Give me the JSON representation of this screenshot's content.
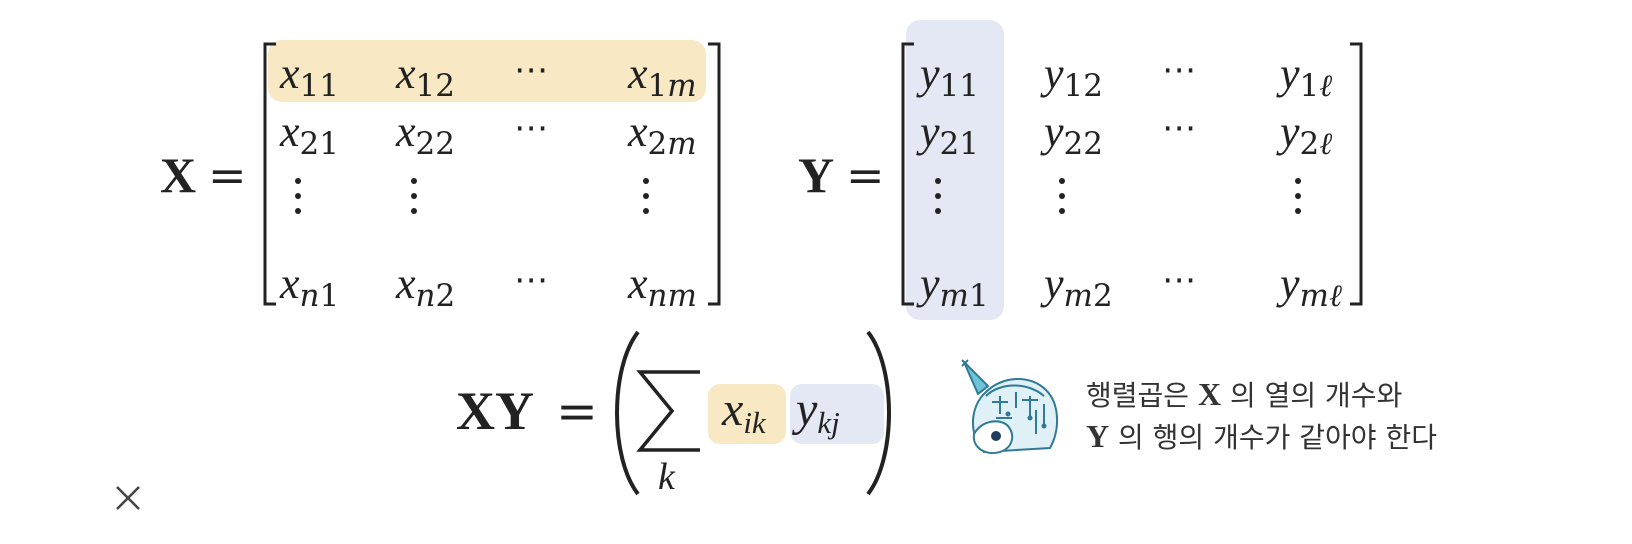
{
  "equations": {
    "x_name": "X",
    "y_name": "Y",
    "equals": "=",
    "product_lhs": "XY",
    "sum_index": "k",
    "x_matrix": [
      [
        {
          "b": "x",
          "s": "11"
        },
        {
          "b": "x",
          "s": "12"
        },
        {
          "b": "⋯",
          "s": ""
        },
        {
          "b": "x",
          "s": "1m"
        }
      ],
      [
        {
          "b": "x",
          "s": "21"
        },
        {
          "b": "x",
          "s": "22"
        },
        {
          "b": "⋯",
          "s": ""
        },
        {
          "b": "x",
          "s": "2m"
        }
      ],
      [
        {
          "b": "⋮",
          "s": ""
        },
        {
          "b": "⋮",
          "s": ""
        },
        {
          "b": "",
          "s": ""
        },
        {
          "b": "⋮",
          "s": ""
        }
      ],
      [
        {
          "b": "x",
          "s": "n1"
        },
        {
          "b": "x",
          "s": "n2"
        },
        {
          "b": "⋯",
          "s": ""
        },
        {
          "b": "x",
          "s": "nm"
        }
      ]
    ],
    "y_matrix": [
      [
        {
          "b": "y",
          "s": "11"
        },
        {
          "b": "y",
          "s": "12"
        },
        {
          "b": "⋯",
          "s": ""
        },
        {
          "b": "y",
          "s": "1ℓ"
        }
      ],
      [
        {
          "b": "y",
          "s": "21"
        },
        {
          "b": "y",
          "s": "22"
        },
        {
          "b": "⋯",
          "s": ""
        },
        {
          "b": "y",
          "s": "2ℓ"
        }
      ],
      [
        {
          "b": "⋮",
          "s": ""
        },
        {
          "b": "⋮",
          "s": ""
        },
        {
          "b": "",
          "s": ""
        },
        {
          "b": "⋮",
          "s": ""
        }
      ],
      [
        {
          "b": "y",
          "s": "m1"
        },
        {
          "b": "y",
          "s": "m2"
        },
        {
          "b": "⋯",
          "s": ""
        },
        {
          "b": "y",
          "s": "mℓ"
        }
      ]
    ],
    "term_x": {
      "b": "x",
      "s": "ik"
    },
    "term_y": {
      "b": "y",
      "s": "kj"
    }
  },
  "note": {
    "line1_pre": "행렬곱은 ",
    "line1_var": "X",
    "line1_post": " 의 열의 개수와",
    "line2_var": "Y",
    "line2_post": " 의 행의 개수가 같아야 한다"
  },
  "mascot_icon": "unicorn-mascot-icon",
  "close_icon": "close-icon",
  "colors": {
    "x_highlight": "#f8e8c4",
    "y_highlight": "#e4e8f5",
    "ink": "#222222"
  }
}
